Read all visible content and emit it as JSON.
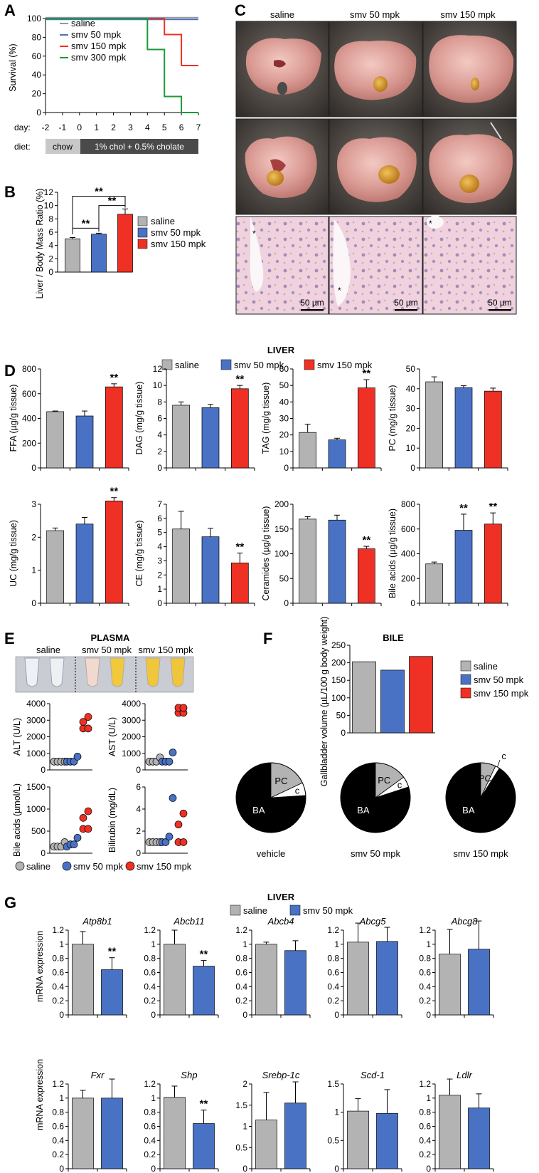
{
  "colors": {
    "saline": "#b3b3b3",
    "smv50": "#4a72c4",
    "smv150": "#ee3124",
    "smv300": "#1a9a3a",
    "line_saline": "#999999",
    "line_smv50": "#4a72c4",
    "black": "#000000"
  },
  "panel_labels": [
    "A",
    "B",
    "C",
    "D",
    "E",
    "F",
    "G"
  ],
  "chart_data": [
    {
      "id": "A",
      "type": "line",
      "ylabel": "Survival (%)",
      "ylim": [
        0,
        100
      ],
      "yticks": [
        0,
        20,
        40,
        60,
        80,
        100
      ],
      "xlabel": "day:",
      "xticks": [
        "-2",
        "-1",
        "0",
        "1",
        "2",
        "3",
        "4",
        "5",
        "6",
        "7"
      ],
      "xlim": [
        -2,
        7
      ],
      "series": [
        {
          "name": "saline",
          "x": [
            -2,
            7
          ],
          "y": [
            100,
            100
          ]
        },
        {
          "name": "smv 50 mpk",
          "x": [
            -2,
            7
          ],
          "y": [
            100,
            100
          ]
        },
        {
          "name": "smv 150 mpk",
          "x": [
            -2,
            5,
            5,
            6,
            6,
            7
          ],
          "y": [
            100,
            100,
            83,
            83,
            50,
            50
          ]
        },
        {
          "name": "smv 300 mpk",
          "x": [
            -2,
            4,
            4,
            5,
            5,
            6,
            6,
            7
          ],
          "y": [
            100,
            100,
            67,
            67,
            17,
            17,
            0,
            0
          ]
        }
      ],
      "diet_label": "diet:",
      "diet_chow": "chow",
      "diet_chol": "1% chol + 0.5% cholate"
    },
    {
      "id": "B",
      "type": "bar",
      "ylabel": "Liver / Body Mass Ratio (%)",
      "ylim": [
        0,
        12
      ],
      "yticks": [
        0,
        2,
        4,
        6,
        8,
        10,
        12
      ],
      "categories": [
        "saline",
        "smv 50 mpk",
        "smv 150 mpk"
      ],
      "values": [
        5.0,
        5.7,
        8.7
      ],
      "errors": [
        0.2,
        0.15,
        0.8
      ],
      "significance": [
        "**",
        "**",
        "**"
      ]
    },
    {
      "id": "D",
      "type": "bar",
      "title": "LIVER",
      "legend": [
        "saline",
        "smv 50 mpk",
        "smv 150 mpk"
      ],
      "subplots": [
        {
          "ylabel": "FFA (µg/g tissue)",
          "ylim": [
            0,
            800
          ],
          "yticks": [
            0,
            200,
            400,
            600,
            800
          ],
          "values": [
            455,
            420,
            655
          ],
          "errors": [
            5,
            40,
            25
          ],
          "sig": [
            "",
            "",
            "**"
          ]
        },
        {
          "ylabel": "DAG (mg/g tissue)",
          "ylim": [
            0,
            12
          ],
          "yticks": [
            0,
            2,
            4,
            6,
            8,
            10,
            12
          ],
          "values": [
            7.6,
            7.3,
            9.6
          ],
          "errors": [
            0.4,
            0.4,
            0.4
          ],
          "sig": [
            "",
            "",
            "**"
          ]
        },
        {
          "ylabel": "TAG (mg/g tissue)",
          "ylim": [
            0,
            60
          ],
          "yticks": [
            0,
            10,
            20,
            30,
            40,
            50,
            60
          ],
          "values": [
            21.5,
            17,
            48.5
          ],
          "errors": [
            5,
            1,
            5
          ],
          "sig": [
            "",
            "",
            "**"
          ]
        },
        {
          "ylabel": "PC (mg/g tissue)",
          "ylim": [
            0,
            50
          ],
          "yticks": [
            0,
            10,
            20,
            30,
            40,
            50
          ],
          "values": [
            43.5,
            40.5,
            38.8
          ],
          "errors": [
            2.5,
            1,
            1.5
          ],
          "sig": [
            "",
            "",
            ""
          ]
        },
        {
          "ylabel": "UC (mg/g tissue)",
          "ylim": [
            0,
            3
          ],
          "yticks": [
            0,
            1,
            2,
            3
          ],
          "values": [
            2.2,
            2.4,
            3.1
          ],
          "errors": [
            0.08,
            0.2,
            0.1
          ],
          "sig": [
            "",
            "",
            "**"
          ]
        },
        {
          "ylabel": "CE (mg/g tissue)",
          "ylim": [
            0,
            7
          ],
          "yticks": [
            0,
            1,
            2,
            3,
            4,
            5,
            6,
            7
          ],
          "values": [
            5.25,
            4.7,
            2.85
          ],
          "errors": [
            1.25,
            0.6,
            0.7
          ],
          "sig": [
            "",
            "",
            "**"
          ]
        },
        {
          "ylabel": "Ceramides (µg/g tissue)",
          "ylim": [
            0,
            200
          ],
          "yticks": [
            0,
            50,
            100,
            150,
            200
          ],
          "values": [
            170,
            168,
            110
          ],
          "errors": [
            5,
            10,
            5
          ],
          "sig": [
            "",
            "",
            "**"
          ]
        },
        {
          "ylabel": "Bile acids (µg/g tissue)",
          "ylim": [
            0,
            800
          ],
          "yticks": [
            0,
            200,
            400,
            600,
            800
          ],
          "values": [
            318,
            590,
            640
          ],
          "errors": [
            15,
            130,
            90
          ],
          "sig": [
            "",
            "**",
            "**"
          ]
        }
      ]
    },
    {
      "id": "E",
      "type": "scatter",
      "title": "PLASMA",
      "photo_labels": [
        "saline",
        "smv 50 mpk",
        "smv 150 mpk"
      ],
      "legend": [
        "saline",
        "smv 50 mpk",
        "smv 150 mpk"
      ],
      "subplots": [
        {
          "ylabel": "ALT (U/L)",
          "ylim": [
            0,
            4000
          ],
          "yticks": [
            0,
            1000,
            2000,
            3000,
            4000
          ],
          "groups": [
            [
              500,
              500,
              500,
              500
            ],
            [
              500,
              500,
              500,
              800
            ],
            [
              2500,
              2500,
              2900,
              3200
            ]
          ]
        },
        {
          "ylabel": "AST (U/L)",
          "ylim": [
            0,
            4000
          ],
          "yticks": [
            0,
            1000,
            2000,
            3000,
            4000
          ],
          "groups": [
            [
              500,
              500,
              500,
              750
            ],
            [
              500,
              500,
              500,
              1050
            ],
            [
              3450,
              3450,
              3750,
              3750
            ]
          ]
        },
        {
          "ylabel": "Bile acids (µmol/L)",
          "ylim": [
            0,
            1500
          ],
          "yticks": [
            0,
            500,
            1000,
            1500
          ],
          "groups": [
            [
              150,
              150,
              150,
              250
            ],
            [
              150,
              200,
              200,
              350
            ],
            [
              550,
              550,
              800,
              950
            ]
          ]
        },
        {
          "ylabel": "Bilirubin (mg/dL)",
          "ylim": [
            0,
            6
          ],
          "yticks": [
            0,
            2,
            4,
            6
          ],
          "groups": [
            [
              1,
              1,
              1,
              1
            ],
            [
              1,
              1,
              1.5,
              5
            ],
            [
              1,
              1,
              2.6,
              3.6
            ]
          ]
        }
      ]
    },
    {
      "id": "F",
      "type": "bar",
      "title": "BILE",
      "ylabel": "Gallbladder volume (µL/100 g body weight)",
      "ylim": [
        0,
        250
      ],
      "yticks": [
        0,
        50,
        100,
        150,
        200,
        250
      ],
      "categories": [
        "saline",
        "smv 50 mpk",
        "smv 150 mpk"
      ],
      "values": [
        203,
        179,
        218
      ],
      "pies": [
        {
          "label": "vehicle",
          "slices": [
            {
              "name": "BA",
              "value": 0.76
            },
            {
              "name": "PC",
              "value": 0.18
            },
            {
              "name": "c",
              "value": 0.06
            }
          ]
        },
        {
          "label": "smv 50 mpk",
          "slices": [
            {
              "name": "BA",
              "value": 0.8
            },
            {
              "name": "PC",
              "value": 0.15
            },
            {
              "name": "c",
              "value": 0.05
            }
          ]
        },
        {
          "label": "smv 150 mpk",
          "slices": [
            {
              "name": "BA",
              "value": 0.91
            },
            {
              "name": "PC",
              "value": 0.07
            },
            {
              "name": "c",
              "value": 0.02
            }
          ]
        }
      ]
    },
    {
      "id": "G",
      "type": "bar",
      "title": "LIVER",
      "legend": [
        "saline",
        "smv 50 mpk"
      ],
      "ylabel": "mRNA expression",
      "subplots": [
        {
          "gene": "Atp8b1",
          "ylim": [
            0,
            1.2
          ],
          "yticks": [
            0,
            0.2,
            0.4,
            0.6,
            0.8,
            1,
            1.2
          ],
          "values": [
            1.0,
            0.64
          ],
          "errors": [
            0.18,
            0.17
          ],
          "sig": [
            "",
            "**"
          ]
        },
        {
          "gene": "Abcb11",
          "ylim": [
            0,
            1.2
          ],
          "yticks": [
            0,
            0.2,
            0.4,
            0.6,
            0.8,
            1,
            1.2
          ],
          "values": [
            1.0,
            0.69
          ],
          "errors": [
            0.2,
            0.08
          ],
          "sig": [
            "",
            "**"
          ]
        },
        {
          "gene": "Abcb4",
          "ylim": [
            0,
            1.2
          ],
          "yticks": [
            0,
            0.2,
            0.4,
            0.6,
            0.8,
            1,
            1.2
          ],
          "values": [
            1.0,
            0.91
          ],
          "errors": [
            0.03,
            0.14
          ],
          "sig": [
            "",
            ""
          ]
        },
        {
          "gene": "Abcg5",
          "ylim": [
            0,
            1.2
          ],
          "yticks": [
            0,
            0.2,
            0.4,
            0.6,
            0.8,
            1,
            1.2
          ],
          "values": [
            1.03,
            1.04
          ],
          "errors": [
            0.27,
            0.2
          ],
          "sig": [
            "",
            ""
          ]
        },
        {
          "gene": "Abcg8",
          "ylim": [
            0,
            1.2
          ],
          "yticks": [
            0,
            0.2,
            0.4,
            0.6,
            0.8,
            1,
            1.2
          ],
          "values": [
            0.86,
            0.93
          ],
          "errors": [
            0.35,
            0.4
          ],
          "sig": [
            "",
            ""
          ]
        },
        {
          "gene": "Fxr",
          "ylim": [
            0,
            1.2
          ],
          "yticks": [
            0,
            0.2,
            0.4,
            0.6,
            0.8,
            1,
            1.2
          ],
          "values": [
            1.0,
            1.0
          ],
          "errors": [
            0.11,
            0.27
          ],
          "sig": [
            "",
            ""
          ]
        },
        {
          "gene": "Shp",
          "ylim": [
            0,
            1.2
          ],
          "yticks": [
            0,
            0.2,
            0.4,
            0.6,
            0.8,
            1,
            1.2
          ],
          "values": [
            1.01,
            0.64
          ],
          "errors": [
            0.16,
            0.19
          ],
          "sig": [
            "",
            "**"
          ]
        },
        {
          "gene": "Srebp-1c",
          "ylim": [
            0,
            2
          ],
          "yticks": [
            0,
            0.5,
            1,
            1.5,
            2
          ],
          "values": [
            1.15,
            1.55
          ],
          "errors": [
            0.65,
            0.5
          ],
          "sig": [
            "",
            ""
          ]
        },
        {
          "gene": "Scd-1",
          "ylim": [
            0,
            1.5
          ],
          "yticks": [
            0,
            0.5,
            1,
            1.5
          ],
          "values": [
            1.02,
            0.98
          ],
          "errors": [
            0.22,
            0.42
          ],
          "sig": [
            "",
            ""
          ]
        },
        {
          "gene": "Ldlr",
          "ylim": [
            0,
            1.2
          ],
          "yticks": [
            0,
            0.2,
            0.4,
            0.6,
            0.8,
            1,
            1.2
          ],
          "values": [
            1.04,
            0.86
          ],
          "errors": [
            0.23,
            0.2
          ],
          "sig": [
            "",
            ""
          ]
        }
      ]
    }
  ],
  "panel_C": {
    "columns": [
      "saline",
      "smv 50 mpk",
      "smv 150 mpk"
    ],
    "scale_bar": "50 µm",
    "marker": "*"
  }
}
